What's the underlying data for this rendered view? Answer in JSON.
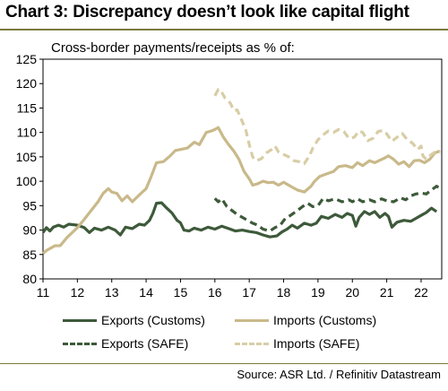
{
  "chart_data": {
    "type": "line",
    "title": "Chart 3: Discrepancy doesn’t look like capital flight",
    "subtitle": "Cross-border payments/receipts as % of:",
    "ylim": [
      80,
      125
    ],
    "yticks": [
      80,
      85,
      90,
      95,
      100,
      105,
      110,
      115,
      120,
      125
    ],
    "xlim": [
      2011,
      2022.6
    ],
    "xticks": [
      2011,
      2012,
      2013,
      2014,
      2015,
      2016,
      2017,
      2018,
      2019,
      2020,
      2021,
      2022
    ],
    "xtick_labels": [
      "11",
      "12",
      "13",
      "14",
      "15",
      "16",
      "17",
      "18",
      "19",
      "20",
      "21",
      "22"
    ],
    "legend_position": "bottom",
    "source": "Source: ASR Ltd. / Refinitiv Datastream",
    "series": [
      {
        "name": "Exports (Customs)",
        "color": "#3d5a3a",
        "dash": "solid",
        "width": 3.2,
        "points": [
          [
            2011.0,
            89.5
          ],
          [
            2011.1,
            90.5
          ],
          [
            2011.2,
            89.8
          ],
          [
            2011.3,
            90.6
          ],
          [
            2011.45,
            91.0
          ],
          [
            2011.6,
            90.6
          ],
          [
            2011.75,
            91.2
          ],
          [
            2012.0,
            91.0
          ],
          [
            2012.2,
            90.5
          ],
          [
            2012.35,
            89.5
          ],
          [
            2012.5,
            90.4
          ],
          [
            2012.7,
            90.0
          ],
          [
            2012.9,
            90.6
          ],
          [
            2013.1,
            90.0
          ],
          [
            2013.25,
            89.0
          ],
          [
            2013.4,
            90.6
          ],
          [
            2013.6,
            90.3
          ],
          [
            2013.8,
            91.2
          ],
          [
            2013.95,
            91.0
          ],
          [
            2014.1,
            92.0
          ],
          [
            2014.2,
            93.5
          ],
          [
            2014.3,
            95.5
          ],
          [
            2014.45,
            95.6
          ],
          [
            2014.6,
            94.5
          ],
          [
            2014.75,
            93.5
          ],
          [
            2014.9,
            92.0
          ],
          [
            2015.0,
            91.5
          ],
          [
            2015.1,
            90.0
          ],
          [
            2015.25,
            89.8
          ],
          [
            2015.4,
            90.4
          ],
          [
            2015.6,
            90.0
          ],
          [
            2015.8,
            90.6
          ],
          [
            2016.0,
            90.2
          ],
          [
            2016.2,
            90.8
          ],
          [
            2016.4,
            90.3
          ],
          [
            2016.6,
            89.8
          ],
          [
            2016.8,
            90.0
          ],
          [
            2017.0,
            89.7
          ],
          [
            2017.2,
            89.5
          ],
          [
            2017.4,
            89.0
          ],
          [
            2017.6,
            88.6
          ],
          [
            2017.8,
            88.8
          ],
          [
            2017.95,
            89.6
          ],
          [
            2018.1,
            90.2
          ],
          [
            2018.25,
            91.0
          ],
          [
            2018.4,
            90.4
          ],
          [
            2018.6,
            91.4
          ],
          [
            2018.8,
            91.0
          ],
          [
            2018.95,
            91.4
          ],
          [
            2019.1,
            92.8
          ],
          [
            2019.3,
            92.4
          ],
          [
            2019.5,
            93.2
          ],
          [
            2019.7,
            92.6
          ],
          [
            2019.85,
            93.4
          ],
          [
            2020.0,
            93.0
          ],
          [
            2020.1,
            90.8
          ],
          [
            2020.2,
            92.6
          ],
          [
            2020.35,
            93.8
          ],
          [
            2020.5,
            93.2
          ],
          [
            2020.65,
            93.8
          ],
          [
            2020.8,
            92.6
          ],
          [
            2020.95,
            93.4
          ],
          [
            2021.05,
            92.8
          ],
          [
            2021.15,
            90.6
          ],
          [
            2021.3,
            91.6
          ],
          [
            2021.5,
            92.0
          ],
          [
            2021.7,
            91.8
          ],
          [
            2021.85,
            92.4
          ],
          [
            2022.0,
            93.0
          ],
          [
            2022.15,
            93.6
          ],
          [
            2022.3,
            94.5
          ],
          [
            2022.45,
            93.8
          ]
        ]
      },
      {
        "name": "Imports (Customs)",
        "color": "#c9b98a",
        "dash": "solid",
        "width": 3.2,
        "points": [
          [
            2011.0,
            85.2
          ],
          [
            2011.1,
            85.8
          ],
          [
            2011.2,
            86.2
          ],
          [
            2011.35,
            86.8
          ],
          [
            2011.5,
            86.8
          ],
          [
            2011.7,
            88.5
          ],
          [
            2011.9,
            89.8
          ],
          [
            2012.0,
            90.5
          ],
          [
            2012.2,
            92.2
          ],
          [
            2012.4,
            94.0
          ],
          [
            2012.6,
            95.8
          ],
          [
            2012.75,
            97.5
          ],
          [
            2012.9,
            98.5
          ],
          [
            2013.0,
            97.8
          ],
          [
            2013.15,
            97.5
          ],
          [
            2013.3,
            96.0
          ],
          [
            2013.45,
            97.0
          ],
          [
            2013.6,
            95.8
          ],
          [
            2013.8,
            97.2
          ],
          [
            2014.0,
            98.5
          ],
          [
            2014.15,
            101.0
          ],
          [
            2014.3,
            103.8
          ],
          [
            2014.5,
            104.0
          ],
          [
            2014.7,
            105.2
          ],
          [
            2014.85,
            106.3
          ],
          [
            2015.0,
            106.5
          ],
          [
            2015.2,
            106.8
          ],
          [
            2015.4,
            108.0
          ],
          [
            2015.55,
            107.5
          ],
          [
            2015.75,
            110.0
          ],
          [
            2015.9,
            110.3
          ],
          [
            2016.0,
            110.6
          ],
          [
            2016.1,
            111.0
          ],
          [
            2016.25,
            109.0
          ],
          [
            2016.4,
            107.5
          ],
          [
            2016.55,
            106.2
          ],
          [
            2016.7,
            104.5
          ],
          [
            2016.85,
            102.0
          ],
          [
            2017.0,
            100.5
          ],
          [
            2017.1,
            99.2
          ],
          [
            2017.25,
            99.5
          ],
          [
            2017.4,
            100.0
          ],
          [
            2017.55,
            99.7
          ],
          [
            2017.7,
            99.8
          ],
          [
            2017.85,
            99.2
          ],
          [
            2018.0,
            99.8
          ],
          [
            2018.2,
            99.0
          ],
          [
            2018.4,
            98.2
          ],
          [
            2018.6,
            97.8
          ],
          [
            2018.8,
            99.0
          ],
          [
            2018.9,
            100.0
          ],
          [
            2019.05,
            101.0
          ],
          [
            2019.25,
            101.5
          ],
          [
            2019.45,
            102.0
          ],
          [
            2019.6,
            103.0
          ],
          [
            2019.8,
            103.2
          ],
          [
            2020.0,
            102.8
          ],
          [
            2020.15,
            103.8
          ],
          [
            2020.3,
            103.2
          ],
          [
            2020.5,
            104.2
          ],
          [
            2020.65,
            103.8
          ],
          [
            2020.8,
            104.3
          ],
          [
            2020.95,
            104.8
          ],
          [
            2021.05,
            105.2
          ],
          [
            2021.2,
            104.5
          ],
          [
            2021.35,
            103.5
          ],
          [
            2021.5,
            104.0
          ],
          [
            2021.65,
            103.0
          ],
          [
            2021.8,
            104.2
          ],
          [
            2021.95,
            104.3
          ],
          [
            2022.1,
            103.8
          ],
          [
            2022.25,
            104.5
          ],
          [
            2022.4,
            105.8
          ],
          [
            2022.55,
            106.2
          ]
        ]
      },
      {
        "name": "Exports (SAFE)",
        "color": "#3d5a3a",
        "dash": "dashed",
        "width": 3.2,
        "points": [
          [
            2016.0,
            96.5
          ],
          [
            2016.1,
            95.8
          ],
          [
            2016.2,
            96.4
          ],
          [
            2016.35,
            94.8
          ],
          [
            2016.5,
            94.0
          ],
          [
            2016.65,
            93.2
          ],
          [
            2016.8,
            92.6
          ],
          [
            2016.95,
            92.0
          ],
          [
            2017.1,
            91.4
          ],
          [
            2017.25,
            91.0
          ],
          [
            2017.4,
            90.2
          ],
          [
            2017.6,
            89.8
          ],
          [
            2017.75,
            90.5
          ],
          [
            2017.9,
            91.0
          ],
          [
            2018.05,
            92.4
          ],
          [
            2018.2,
            93.0
          ],
          [
            2018.4,
            94.0
          ],
          [
            2018.55,
            94.8
          ],
          [
            2018.7,
            95.5
          ],
          [
            2018.85,
            94.8
          ],
          [
            2019.0,
            95.0
          ],
          [
            2019.15,
            96.5
          ],
          [
            2019.3,
            96.0
          ],
          [
            2019.5,
            96.4
          ],
          [
            2019.7,
            95.8
          ],
          [
            2019.9,
            96.2
          ],
          [
            2020.0,
            95.8
          ],
          [
            2020.15,
            96.4
          ],
          [
            2020.3,
            95.8
          ],
          [
            2020.5,
            96.2
          ],
          [
            2020.65,
            95.8
          ],
          [
            2020.85,
            96.4
          ],
          [
            2021.0,
            96.0
          ],
          [
            2021.2,
            95.8
          ],
          [
            2021.4,
            96.6
          ],
          [
            2021.55,
            96.2
          ],
          [
            2021.7,
            97.0
          ],
          [
            2021.85,
            97.4
          ],
          [
            2022.0,
            97.6
          ],
          [
            2022.15,
            97.4
          ],
          [
            2022.3,
            98.2
          ],
          [
            2022.45,
            99.0
          ],
          [
            2022.55,
            98.5
          ]
        ]
      },
      {
        "name": "Imports (SAFE)",
        "color": "#d8cda6",
        "dash": "dashed",
        "width": 3.2,
        "points": [
          [
            2016.0,
            117.5
          ],
          [
            2016.1,
            118.8
          ],
          [
            2016.2,
            118.2
          ],
          [
            2016.3,
            117.0
          ],
          [
            2016.45,
            116.0
          ],
          [
            2016.55,
            114.5
          ],
          [
            2016.65,
            114.6
          ],
          [
            2016.75,
            113.0
          ],
          [
            2016.9,
            110.5
          ],
          [
            2017.0,
            107.5
          ],
          [
            2017.1,
            105.0
          ],
          [
            2017.2,
            104.2
          ],
          [
            2017.35,
            104.6
          ],
          [
            2017.5,
            105.8
          ],
          [
            2017.65,
            106.5
          ],
          [
            2017.75,
            107.2
          ],
          [
            2017.85,
            106.0
          ],
          [
            2018.0,
            105.5
          ],
          [
            2018.15,
            105.0
          ],
          [
            2018.3,
            104.2
          ],
          [
            2018.45,
            104.0
          ],
          [
            2018.6,
            103.6
          ],
          [
            2018.75,
            105.2
          ],
          [
            2018.85,
            106.8
          ],
          [
            2019.0,
            108.5
          ],
          [
            2019.15,
            109.5
          ],
          [
            2019.3,
            110.3
          ],
          [
            2019.45,
            110.0
          ],
          [
            2019.6,
            110.6
          ],
          [
            2019.75,
            110.2
          ],
          [
            2019.9,
            108.8
          ],
          [
            2020.05,
            109.0
          ],
          [
            2020.2,
            110.3
          ],
          [
            2020.3,
            110.0
          ],
          [
            2020.45,
            108.3
          ],
          [
            2020.6,
            108.8
          ],
          [
            2020.75,
            110.2
          ],
          [
            2020.9,
            110.4
          ],
          [
            2021.0,
            109.7
          ],
          [
            2021.15,
            108.2
          ],
          [
            2021.3,
            109.0
          ],
          [
            2021.45,
            109.8
          ],
          [
            2021.6,
            108.5
          ],
          [
            2021.75,
            107.8
          ],
          [
            2021.9,
            106.5
          ],
          [
            2022.0,
            107.2
          ],
          [
            2022.05,
            105.2
          ],
          [
            2022.15,
            104.5
          ],
          [
            2022.3,
            105.5
          ],
          [
            2022.45,
            106.2
          ],
          [
            2022.55,
            106.0
          ]
        ]
      }
    ]
  }
}
